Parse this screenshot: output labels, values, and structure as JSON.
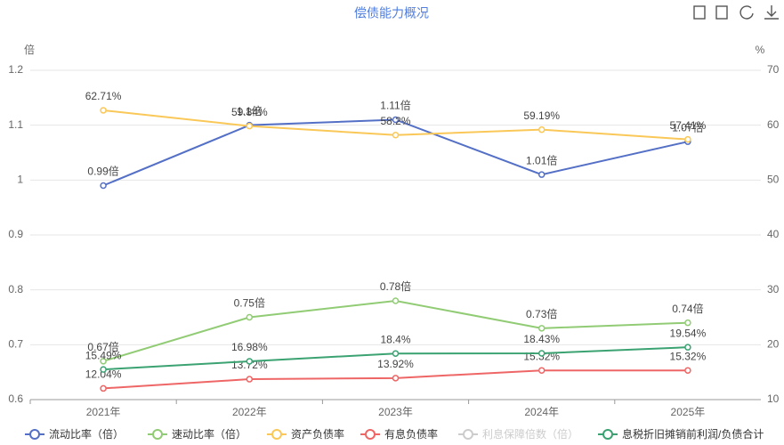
{
  "chart_data": {
    "type": "line",
    "title": "偿债能力概况",
    "y_label": "倍",
    "y2_label": "%",
    "categories": [
      "2021年",
      "2022年",
      "2023年",
      "2024年",
      "2025年"
    ],
    "ylim": [
      0.6,
      1.2
    ],
    "yticks": [
      0.6,
      0.7,
      0.8,
      0.9,
      1,
      1.1,
      1.2
    ],
    "y2lim": [
      10,
      70
    ],
    "y2ticks": [
      10,
      20,
      30,
      40,
      50,
      60,
      70
    ],
    "grid": true,
    "legend": "bottom",
    "series": [
      {
        "name": "流动比率（倍）",
        "color": "#5470c6",
        "values": [
          0.99,
          1.1,
          1.11,
          1.01,
          1.07
        ],
        "value_labels": [
          "0.99倍",
          "1.1倍",
          "1.11倍",
          "1.01倍",
          "1.07倍"
        ]
      },
      {
        "name": "速动比率（倍）",
        "color": "#91cc75",
        "values": [
          0.67,
          0.75,
          0.78,
          0.73,
          0.74
        ],
        "value_labels": [
          "0.67倍",
          "0.75倍",
          "0.78倍",
          "0.73倍",
          "0.74倍"
        ]
      },
      {
        "name": "资产负债率",
        "color": "#fac858",
        "axis": "y2",
        "values": [
          62.71,
          59.84,
          58.2,
          59.19,
          57.41
        ],
        "value_labels": [
          "62.71%",
          "59.84%",
          "58.2%",
          "59.19%",
          "57.41%"
        ]
      },
      {
        "name": "有息负债率",
        "color": "#ee6666",
        "axis": "y2",
        "values": [
          12.04,
          13.72,
          13.92,
          15.32,
          15.32
        ],
        "value_labels": [
          "12.04%",
          "13.72%",
          "13.92%",
          "15.32%",
          "15.32%"
        ]
      },
      {
        "name": "利息保障倍数（倍）",
        "color": "#cccccc",
        "visible": false
      },
      {
        "name": "息税折旧摊销前利润/负债合计",
        "color": "#3ba272",
        "axis": "y2",
        "values": [
          15.49,
          16.98,
          18.4,
          18.43,
          19.54
        ],
        "value_labels": [
          "15.49%",
          "16.98%",
          "18.4%",
          "18.43%",
          "19.54%"
        ]
      }
    ]
  }
}
